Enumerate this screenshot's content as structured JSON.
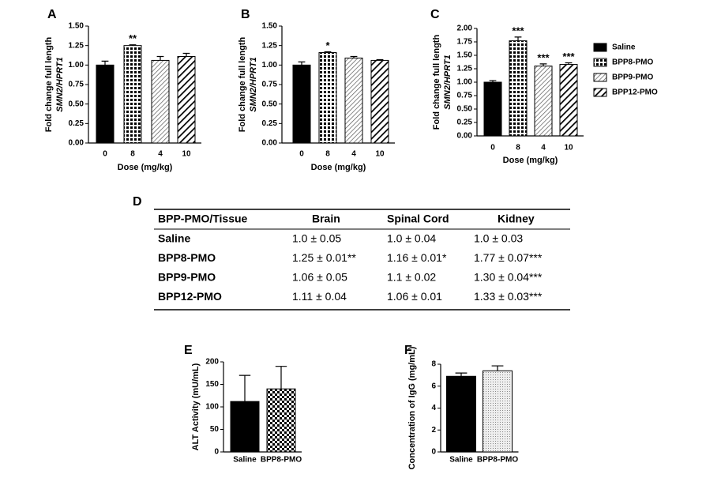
{
  "chart_data": [
    {
      "type": "bar",
      "panel": "A",
      "ylabel": [
        "Fold change full length",
        "SMN2/HPRT1"
      ],
      "xlabel": "Dose (mg/kg)",
      "categories": [
        "0",
        "8",
        "4",
        "10"
      ],
      "values": [
        1.0,
        1.25,
        1.06,
        1.11
      ],
      "errors": [
        0.05,
        0.01,
        0.05,
        0.04
      ],
      "significance": [
        null,
        "**",
        null,
        null
      ],
      "bar_styles": [
        "solid",
        "grid",
        "hatch-light",
        "hatch-heavy"
      ],
      "ylim": [
        0,
        1.5
      ],
      "yticks": [
        {
          "value": 0,
          "label": "0.00"
        },
        {
          "value": 0.25,
          "label": "0.25"
        },
        {
          "value": 0.5,
          "label": "0.50"
        },
        {
          "value": 0.75,
          "label": "0.75"
        },
        {
          "value": 1,
          "label": "1.00"
        },
        {
          "value": 1.25,
          "label": "1.25"
        },
        {
          "value": 1.5,
          "label": "1.50"
        }
      ]
    },
    {
      "type": "bar",
      "panel": "B",
      "ylabel": [
        "Fold change full length",
        "SMN2/HPRT1"
      ],
      "xlabel": "Dose (mg/kg)",
      "categories": [
        "0",
        "8",
        "4",
        "10"
      ],
      "values": [
        1.0,
        1.16,
        1.09,
        1.06
      ],
      "errors": [
        0.04,
        0.01,
        0.02,
        0.01
      ],
      "significance": [
        null,
        "*",
        null,
        null
      ],
      "bar_styles": [
        "solid",
        "grid",
        "hatch-light",
        "hatch-heavy"
      ],
      "ylim": [
        0,
        1.5
      ],
      "yticks": [
        {
          "value": 0,
          "label": "0.00"
        },
        {
          "value": 0.25,
          "label": "0.25"
        },
        {
          "value": 0.5,
          "label": "0.50"
        },
        {
          "value": 0.75,
          "label": "0.75"
        },
        {
          "value": 1,
          "label": "1.00"
        },
        {
          "value": 1.25,
          "label": "1.25"
        },
        {
          "value": 1.5,
          "label": "1.50"
        }
      ]
    },
    {
      "type": "bar",
      "panel": "C",
      "ylabel": [
        "Fold change full length",
        "SMN2/HPRT1"
      ],
      "xlabel": "Dose (mg/kg)",
      "categories": [
        "0",
        "8",
        "4",
        "10"
      ],
      "values": [
        1.0,
        1.77,
        1.3,
        1.33
      ],
      "errors": [
        0.03,
        0.07,
        0.04,
        0.03
      ],
      "significance": [
        null,
        "***",
        "***",
        "***"
      ],
      "bar_styles": [
        "solid",
        "grid",
        "hatch-light",
        "hatch-heavy"
      ],
      "legend": [
        "Saline",
        "BPP8-PMO",
        "BPP9-PMO",
        "BPP12-PMO"
      ],
      "ylim": [
        0,
        2
      ],
      "yticks": [
        {
          "value": 0,
          "label": "0.00"
        },
        {
          "value": 0.25,
          "label": "0.25"
        },
        {
          "value": 0.5,
          "label": "0.50"
        },
        {
          "value": 0.75,
          "label": "0.75"
        },
        {
          "value": 1,
          "label": "1.00"
        },
        {
          "value": 1.25,
          "label": "1.25"
        },
        {
          "value": 1.5,
          "label": "1.50"
        },
        {
          "value": 1.75,
          "label": "1.75"
        },
        {
          "value": 2,
          "label": "2.00"
        }
      ]
    },
    {
      "type": "bar",
      "panel": "E",
      "ylabel": [
        "ALT Activity (mU/mL)"
      ],
      "categories": [
        "Saline",
        "BPP8-PMO"
      ],
      "values": [
        112,
        140
      ],
      "errors": [
        58,
        50
      ],
      "bar_styles": [
        "solid",
        "checker"
      ],
      "ylim": [
        0,
        200
      ],
      "yticks": [
        0,
        50,
        100,
        150,
        200
      ]
    },
    {
      "type": "bar",
      "panel": "F",
      "ylabel": [
        "Concentration of IgG (mg/mL)"
      ],
      "categories": [
        "Saline",
        "BPP8-PMO"
      ],
      "values": [
        6.9,
        7.4
      ],
      "errors": [
        0.3,
        0.45
      ],
      "bar_styles": [
        "solid",
        "dots"
      ],
      "ylim": [
        0,
        8
      ],
      "yticks": [
        0,
        2,
        4,
        6,
        8
      ]
    }
  ],
  "table": {
    "panel": "D",
    "header": [
      "BPP-PMO/Tissue",
      "Brain",
      "Spinal Cord",
      "Kidney"
    ],
    "rows": [
      [
        "Saline",
        "1.0 ± 0.05",
        "1.0 ± 0.04",
        "1.0 ± 0.03"
      ],
      [
        "BPP8-PMO",
        "1.25 ± 0.01**",
        "1.16 ± 0.01*",
        "1.77 ± 0.07***"
      ],
      [
        "BPP9-PMO",
        "1.06 ± 0.05",
        "1.1 ± 0.02",
        "1.30 ± 0.04***"
      ],
      [
        "BPP12-PMO",
        "1.11 ± 0.04",
        "1.06 ± 0.01",
        "1.33 ± 0.03***"
      ]
    ]
  }
}
